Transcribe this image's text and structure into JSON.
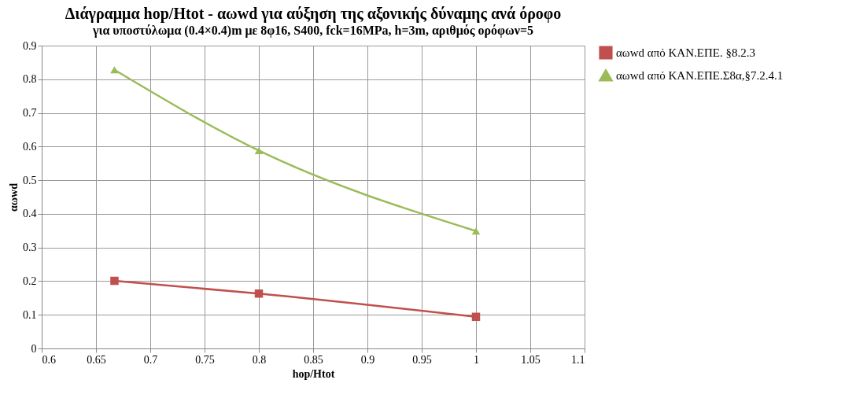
{
  "chart_data": {
    "type": "line",
    "title": "Διάγραμμα hop/Htot - αωwd για αύξηση της αξονικής δύναμης ανά όροφο",
    "subtitle": "για υποστύλωμα (0.4×0.4)m με 8φ16, S400, fck=16MPa, h=3m, αριθμός ορόφων=5",
    "xlabel": "hop/Htot",
    "ylabel": "αωwd",
    "x": [
      0.667,
      0.8,
      1.0
    ],
    "series": [
      {
        "name": "αωwd από ΚΑΝ.ΕΠΕ. §8.2.3",
        "color": "#c0504d",
        "marker": "square",
        "values": [
          0.201,
          0.163,
          0.094
        ]
      },
      {
        "name": "αωwd από ΚΑΝ.ΕΠΕ.Σ8α,§7.2.4.1",
        "color": "#9bbb59",
        "marker": "triangle",
        "values": [
          0.828,
          0.588,
          0.349
        ]
      }
    ],
    "xlim": [
      0.6,
      1.1
    ],
    "xticks": [
      0.6,
      0.65,
      0.7,
      0.75,
      0.8,
      0.85,
      0.9,
      0.95,
      1,
      1.05,
      1.1
    ],
    "ylim": [
      0,
      0.9
    ],
    "yticks": [
      0,
      0.1,
      0.2,
      0.3,
      0.4,
      0.5,
      0.6,
      0.7,
      0.8,
      0.9
    ],
    "grid": true,
    "legend": "right",
    "line_style": "solid"
  }
}
